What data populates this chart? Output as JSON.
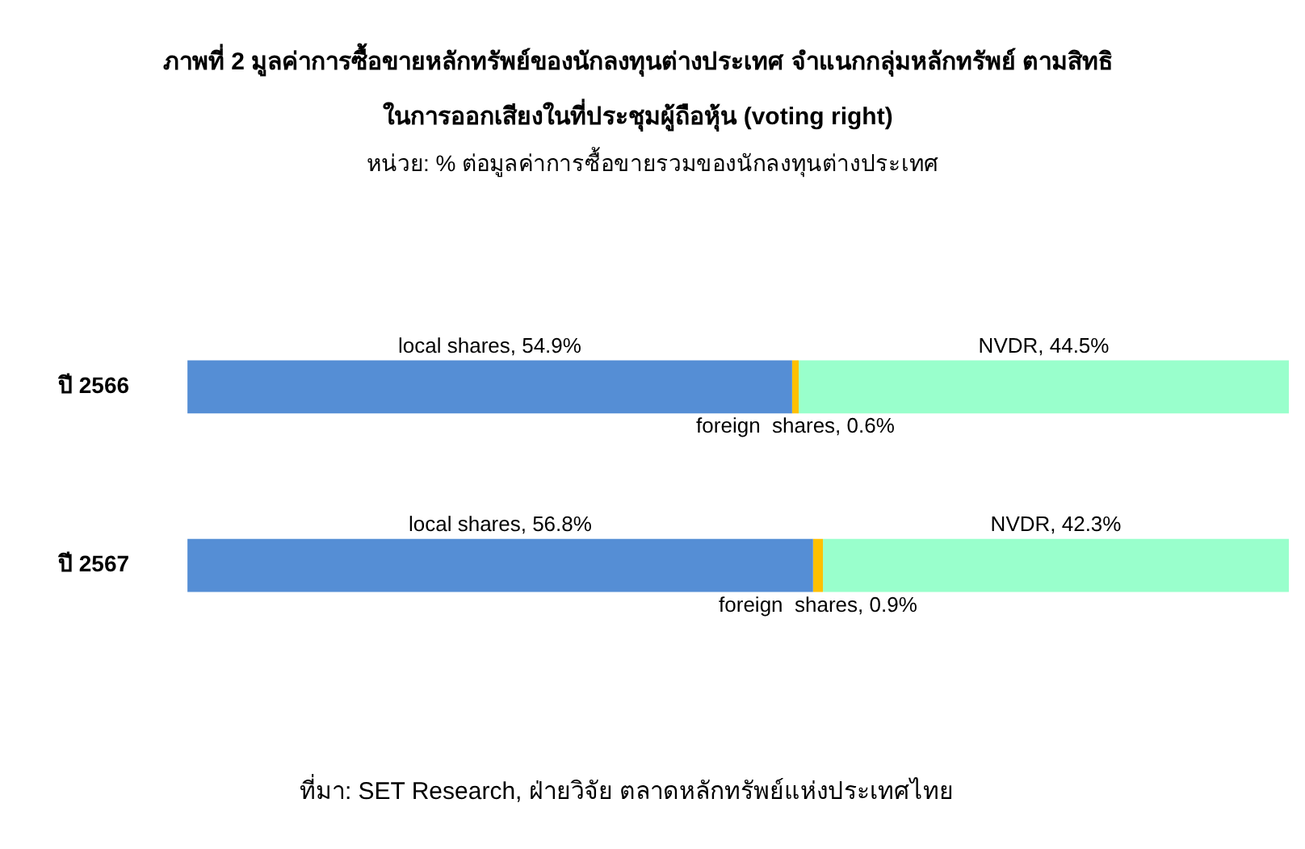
{
  "chart_data": {
    "type": "bar",
    "orientation": "horizontal",
    "stacked": true,
    "title": "ภาพที่ 2 มูลค่าการซื้อขายหลักทรัพย์ของนักลงทุนต่างประเทศ จำแนกกลุ่มหลักทรัพย์ ตามสิทธิในการออกเสียงในที่ประชุมผู้ถือหุ้น (voting right)",
    "subtitle": "หน่วย: % ต่อมูลค่าการซื้อขายรวมของนักลงทุนต่างประเทศ",
    "categories": [
      "ปี 2566",
      "ปี 2567"
    ],
    "tick_labels": "y",
    "legend": false,
    "series": [
      {
        "color": "#558ed5",
        "values": [
          54.9,
          56.8
        ],
        "value_labels": [
          "local shares, 54.9%",
          "local shares, 56.8%"
        ]
      },
      {
        "color": "#ffc000",
        "values": [
          0.6,
          0.9
        ],
        "value_labels": [
          "foreign  shares, 0.6%",
          "foreign  shares, 0.9%"
        ]
      },
      {
        "color": "#99ffcc",
        "values": [
          44.5,
          42.3
        ],
        "value_labels": [
          "NVDR, 44.5%",
          "NVDR, 42.3%"
        ]
      }
    ],
    "annotations": [
      "ที่มา: SET Research, ฝ่ายวิจัย ตลาดหลักทรัพย์แห่งประเทศไทย"
    ]
  }
}
